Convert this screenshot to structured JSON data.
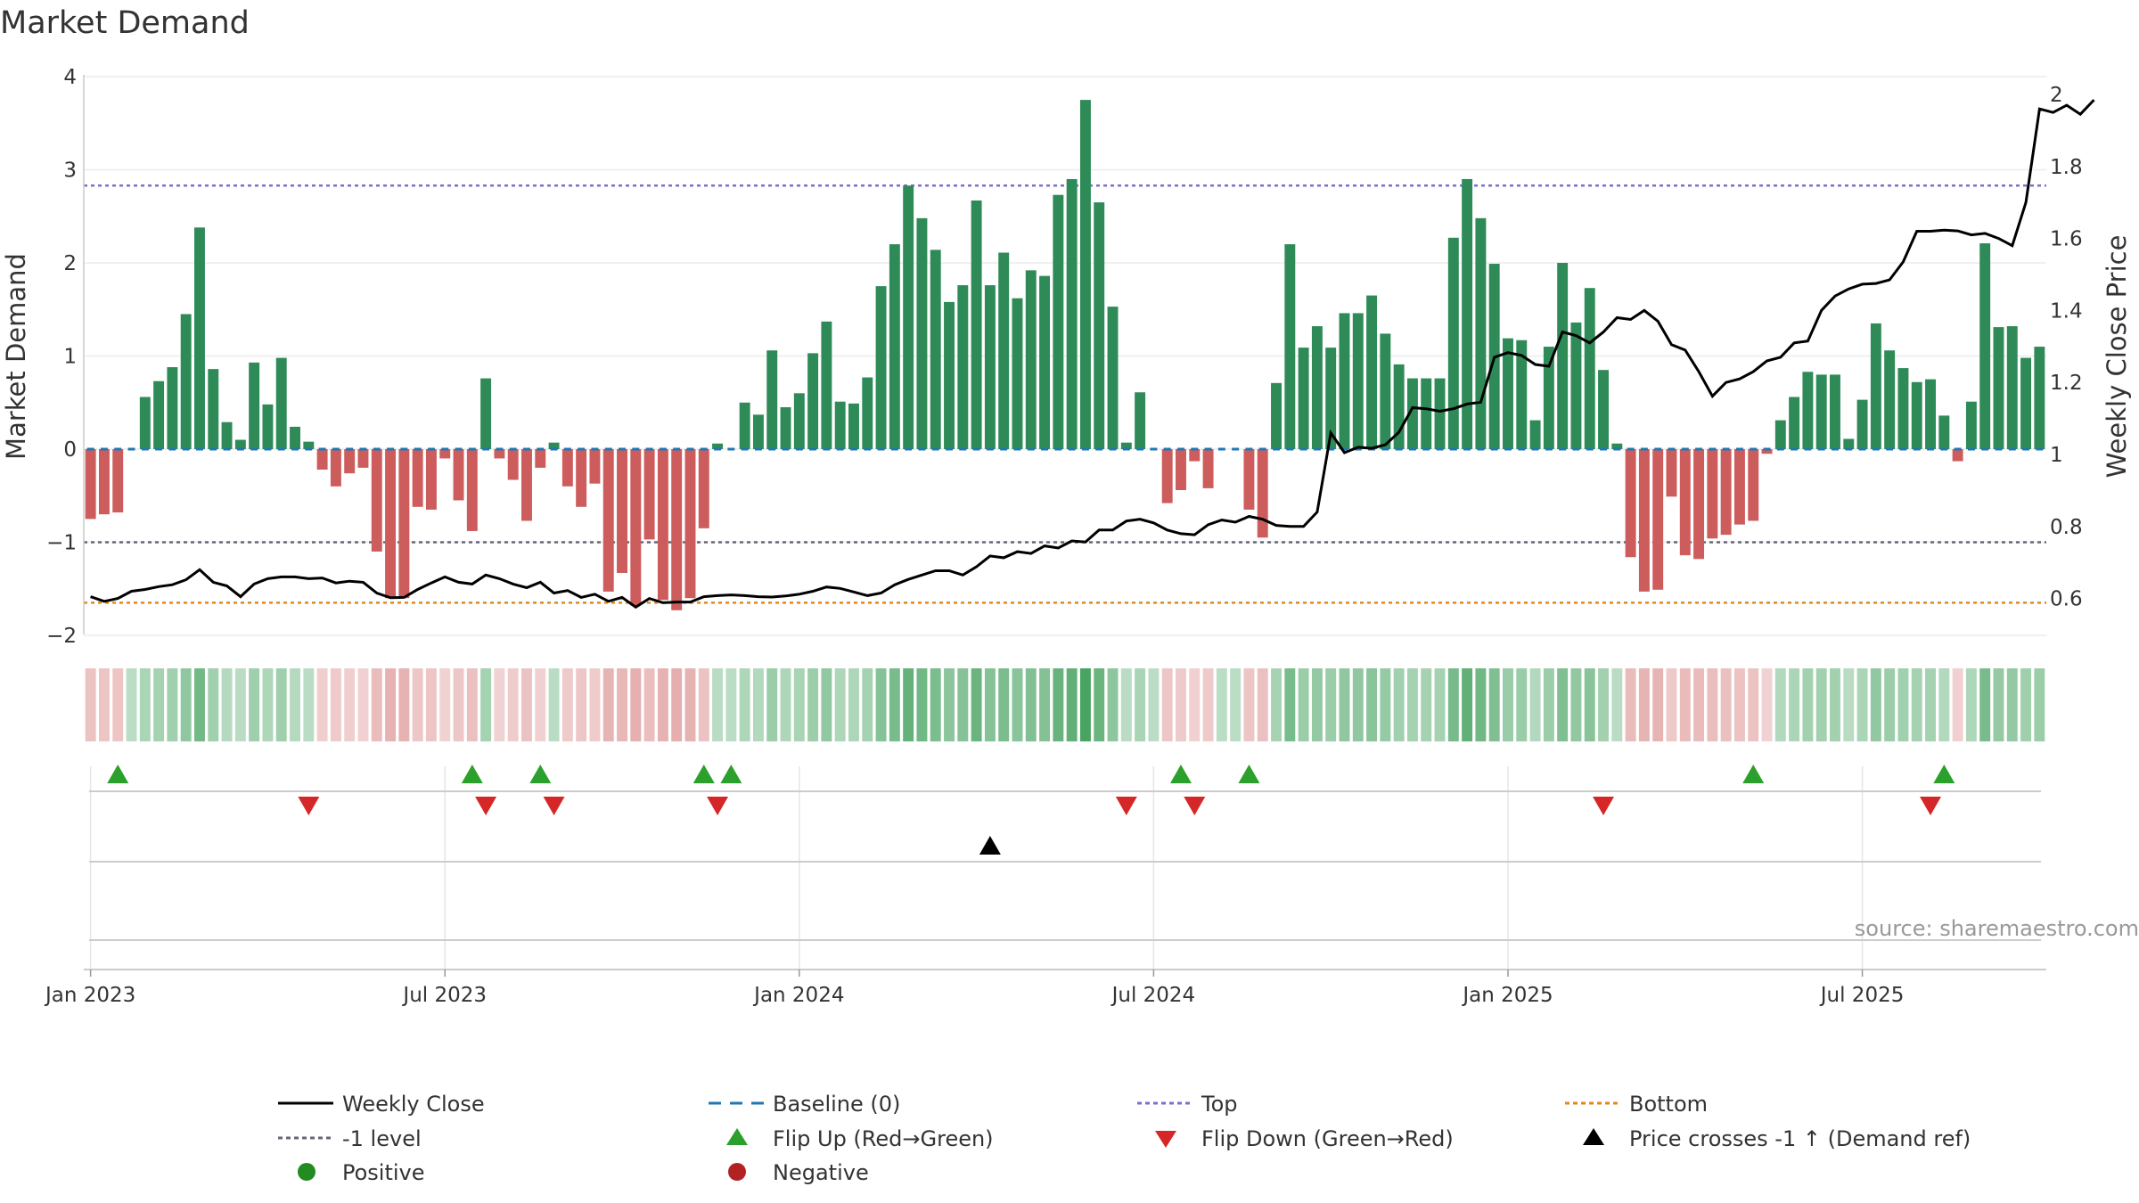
{
  "chart_data": {
    "type": "bar",
    "title": "Market Demand",
    "ylabel": "Market Demand",
    "y2label": "Weekly Close Price",
    "ylim": [
      -2.15,
      4.1
    ],
    "y2lim": [
      0.52,
      2.05
    ],
    "y_ticks": [
      4,
      3,
      2,
      1,
      0,
      -1,
      -2
    ],
    "y_tick_labels": [
      "4",
      "3",
      "2",
      "1",
      "0",
      "−1",
      "−2"
    ],
    "y2_ticks": [
      2,
      1.8,
      1.6,
      1.4,
      1.2,
      1,
      0.8,
      0.6
    ],
    "y2_tick_labels": [
      "2",
      "1.8",
      "1.6",
      "1.4",
      "1.2",
      "1",
      "0.8",
      "0.6"
    ],
    "x_ticks": [
      {
        "week": 1,
        "label": "Jan 2023"
      },
      {
        "week": 27,
        "label": "Jul 2023"
      },
      {
        "week": 53,
        "label": "Jan 2024"
      },
      {
        "week": 79,
        "label": "Jul 2024"
      },
      {
        "week": 105,
        "label": "Jan 2025"
      },
      {
        "week": 131,
        "label": "Jul 2025"
      }
    ],
    "reference_lines": {
      "top": 2.83,
      "minus_one": -1,
      "bottom": -1.65,
      "baseline": 0
    },
    "demand": [
      -0.75,
      -0.7,
      -0.68,
      0,
      0.56,
      0.73,
      0.88,
      1.45,
      2.38,
      0.86,
      0.29,
      0.1,
      0.93,
      0.48,
      0.98,
      0.24,
      0.08,
      -0.22,
      -0.4,
      -0.26,
      -0.2,
      -1.1,
      -1.6,
      -1.6,
      -0.62,
      -0.65,
      -0.1,
      -0.55,
      -0.88,
      0.76,
      -0.1,
      -0.33,
      -0.77,
      -0.2,
      0.07,
      -0.4,
      -0.62,
      -0.37,
      -1.53,
      -1.33,
      -1.68,
      -0.97,
      -1.62,
      -1.73,
      -1.6,
      -0.85,
      0.06,
      0,
      0.5,
      0.37,
      1.06,
      0.45,
      0.6,
      1.03,
      1.37,
      0.51,
      0.49,
      0.77,
      1.75,
      2.2,
      2.83,
      2.48,
      2.14,
      1.58,
      1.76,
      2.67,
      1.76,
      2.11,
      1.62,
      1.92,
      1.86,
      2.73,
      2.9,
      3.75,
      2.65,
      1.53,
      0.07,
      0.61,
      0,
      -0.58,
      -0.44,
      -0.13,
      -0.42,
      0,
      0,
      -0.65,
      -0.95,
      0.71,
      2.2,
      1.09,
      1.32,
      1.09,
      1.46,
      1.46,
      1.65,
      1.24,
      0.91,
      0.76,
      0.76,
      0.76,
      2.27,
      2.9,
      2.48,
      1.99,
      1.19,
      1.17,
      0.31,
      1.1,
      2.0,
      1.36,
      1.73,
      0.85,
      0.06,
      -1.16,
      -1.53,
      -1.51,
      -0.51,
      -1.14,
      -1.18,
      -0.96,
      -0.92,
      -0.81,
      -0.77,
      -0.05,
      0.31,
      0.56,
      0.83,
      0.8,
      0.8,
      0.11,
      0.53,
      1.35,
      1.06,
      0.87,
      0.72,
      0.75,
      0.36,
      -0.13,
      0.51,
      2.21,
      1.31,
      1.32,
      0.98,
      1.1
    ],
    "weekly_close": [
      0.605,
      0.592,
      0.6,
      0.62,
      0.625,
      0.633,
      0.638,
      0.652,
      0.68,
      0.645,
      0.635,
      0.605,
      0.64,
      0.655,
      0.66,
      0.66,
      0.655,
      0.657,
      0.643,
      0.648,
      0.645,
      0.615,
      0.602,
      0.603,
      0.625,
      0.643,
      0.66,
      0.645,
      0.64,
      0.665,
      0.655,
      0.64,
      0.63,
      0.645,
      0.615,
      0.622,
      0.603,
      0.612,
      0.592,
      0.603,
      0.576,
      0.6,
      0.588,
      0.59,
      0.59,
      0.605,
      0.608,
      0.61,
      0.608,
      0.605,
      0.604,
      0.607,
      0.612,
      0.62,
      0.632,
      0.628,
      0.618,
      0.608,
      0.615,
      0.638,
      0.653,
      0.665,
      0.677,
      0.677,
      0.665,
      0.688,
      0.718,
      0.713,
      0.73,
      0.725,
      0.746,
      0.74,
      0.76,
      0.757,
      0.79,
      0.79,
      0.815,
      0.82,
      0.81,
      0.79,
      0.78,
      0.777,
      0.805,
      0.818,
      0.812,
      0.828,
      0.82,
      0.803,
      0.8,
      0.8,
      0.84,
      1.06,
      1.005,
      1.02,
      1.017,
      1.027,
      1.062,
      1.13,
      1.127,
      1.12,
      1.127,
      1.14,
      1.145,
      1.27,
      1.283,
      1.275,
      1.25,
      1.245,
      1.34,
      1.33,
      1.31,
      1.34,
      1.38,
      1.375,
      1.4,
      1.37,
      1.305,
      1.29,
      1.23,
      1.162,
      1.2,
      1.21,
      1.23,
      1.26,
      1.27,
      1.31,
      1.315,
      1.4,
      1.44,
      1.46,
      1.473,
      1.475,
      1.485,
      1.535,
      1.62,
      1.62,
      1.623,
      1.621,
      1.61,
      1.614,
      1.6,
      1.58,
      1.7,
      1.96,
      1.95,
      1.97,
      1.945,
      1.985
    ],
    "signals": {
      "flip_up_weeks": [
        3,
        29,
        34,
        46,
        48,
        81,
        86,
        123,
        137
      ],
      "flip_down_weeks": [
        17,
        30,
        35,
        47,
        77,
        82,
        112,
        136
      ],
      "price_cross_weeks": [
        67
      ]
    },
    "legend": [
      {
        "key": "weekly_close",
        "label": "Weekly Close"
      },
      {
        "key": "baseline",
        "label": "Baseline (0)"
      },
      {
        "key": "top",
        "label": "Top"
      },
      {
        "key": "bottom",
        "label": "Bottom"
      },
      {
        "key": "minus_one",
        "label": "-1 level"
      },
      {
        "key": "flip_up",
        "label": "Flip Up (Red→Green)"
      },
      {
        "key": "flip_down",
        "label": "Flip Down (Green→Red)"
      },
      {
        "key": "price_cross",
        "label": "Price crosses -1 ↑ (Demand ref)"
      },
      {
        "key": "positive",
        "label": "Positive"
      },
      {
        "key": "negative",
        "label": "Negative"
      }
    ],
    "source": "source: sharemaestro.com",
    "colors": {
      "positive": "#2e8b57",
      "negative": "#cd5c5c",
      "price_line": "#000000",
      "baseline": "#1f77b4",
      "top": "#7b6fd0",
      "bottom": "#e08a1e",
      "minus_one": "#666677",
      "flip_up": "#2ca02c",
      "flip_down": "#d62728",
      "price_cross": "#000000",
      "positive_dot": "#228b22",
      "negative_dot": "#b22222"
    }
  }
}
